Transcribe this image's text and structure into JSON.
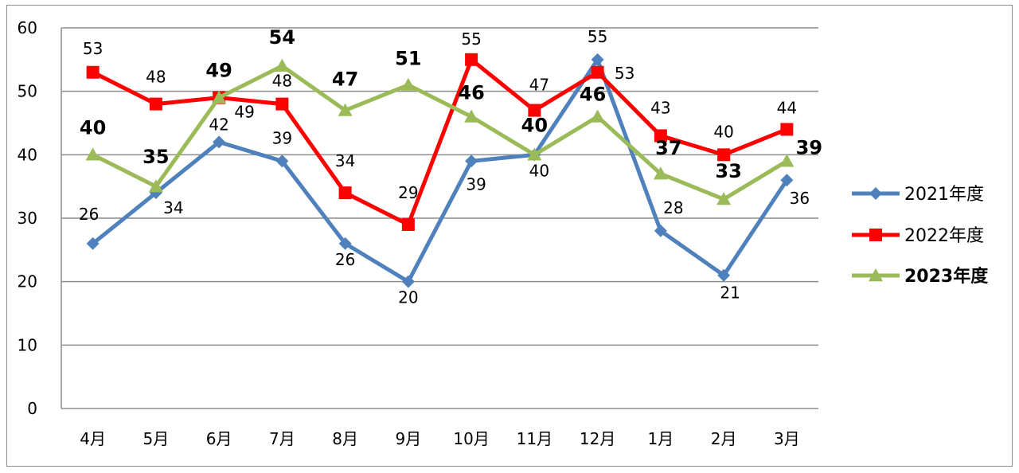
{
  "chart_data": {
    "type": "line",
    "categories": [
      "4月",
      "5月",
      "6月",
      "7月",
      "8月",
      "9月",
      "10月",
      "11月",
      "12月",
      "1月",
      "2月",
      "3月"
    ],
    "ylim": [
      0,
      60
    ],
    "yticks": [
      0,
      10,
      20,
      30,
      40,
      50,
      60
    ],
    "grid": true,
    "legend_position": "right",
    "series": [
      {
        "name": "2021年度",
        "color": "#4F81BD",
        "marker": "diamond",
        "bold_labels": false,
        "values": [
          26,
          34,
          42,
          39,
          26,
          20,
          39,
          40,
          55,
          28,
          21,
          36
        ],
        "labels": [
          "26",
          "34",
          "42",
          "39",
          "26",
          "20",
          "39",
          "40",
          "55",
          "28",
          "21",
          "36"
        ]
      },
      {
        "name": "2022年度",
        "color": "#FF0000",
        "marker": "square",
        "bold_labels": false,
        "values": [
          53,
          48,
          49,
          48,
          34,
          29,
          55,
          47,
          53,
          43,
          40,
          44
        ],
        "labels": [
          "53",
          "48",
          "49",
          "48",
          "34",
          "29",
          "55",
          "47",
          "53",
          "43",
          "40",
          "44"
        ]
      },
      {
        "name": "2023年度",
        "color": "#9BBB59",
        "marker": "triangle",
        "bold_labels": true,
        "values": [
          40,
          35,
          49,
          54,
          47,
          51,
          46,
          40,
          46,
          37,
          33,
          39
        ],
        "labels": [
          "40",
          "35",
          "49",
          "54",
          "47",
          "51",
          "46",
          "40",
          "46",
          "37",
          "33",
          "39"
        ]
      }
    ]
  }
}
